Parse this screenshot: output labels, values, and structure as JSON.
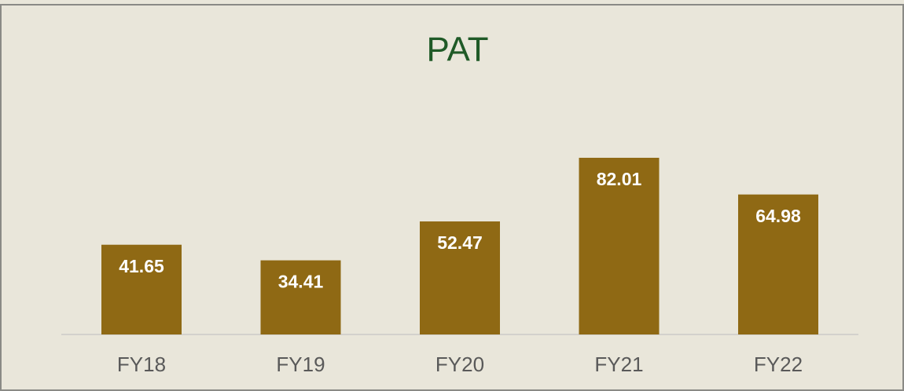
{
  "chart_data": {
    "type": "bar",
    "title": "PAT",
    "categories": [
      "FY18",
      "FY19",
      "FY20",
      "FY21",
      "FY22"
    ],
    "values": [
      41.65,
      34.41,
      52.47,
      82.01,
      64.98
    ],
    "color": "#8f6914"
  }
}
